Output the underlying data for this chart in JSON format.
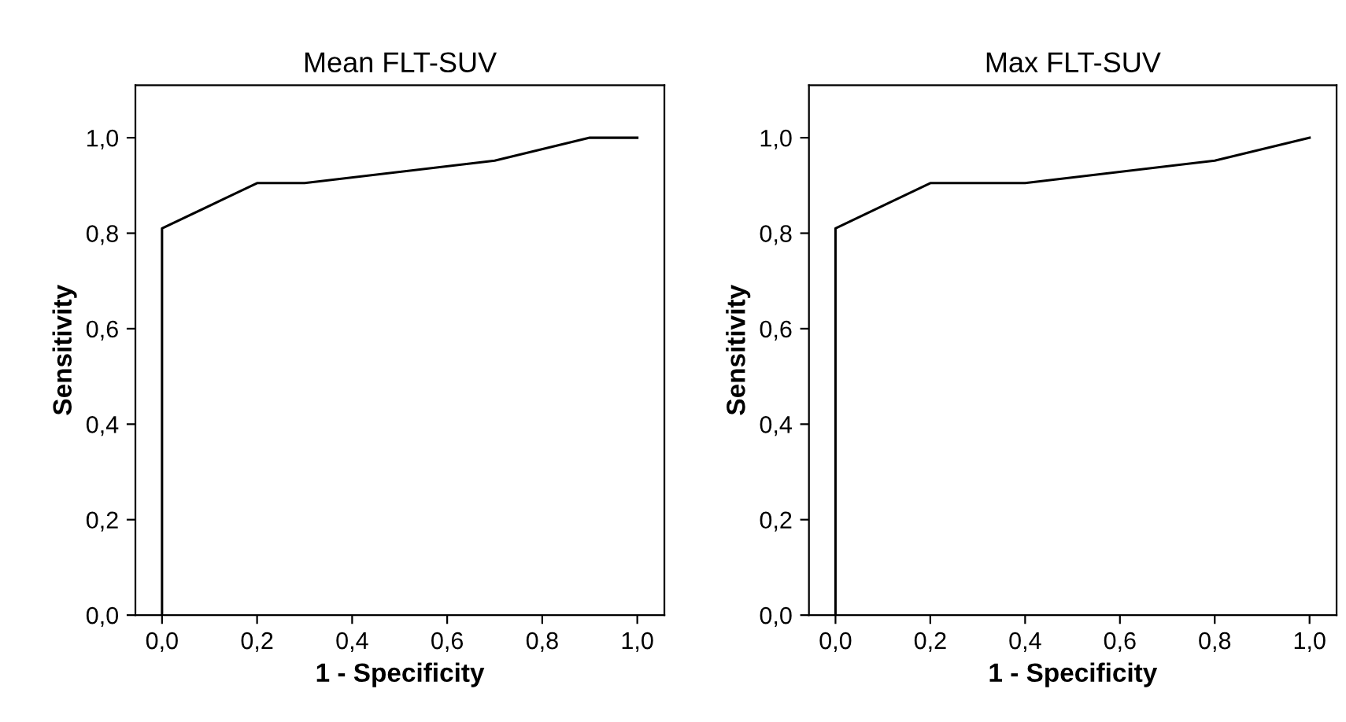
{
  "chart_data": [
    {
      "type": "line",
      "title": "Mean FLT-SUV",
      "xlabel": "1 - Specificity",
      "ylabel": "Sensitivity",
      "series": [
        {
          "color": "#000000",
          "x": [
            0,
            0,
            0.2,
            0.3,
            0.7,
            0.9,
            1.0
          ],
          "values": [
            0,
            0.81,
            0.905,
            0.905,
            0.952,
            1.0,
            1.0
          ]
        }
      ],
      "xlim": [
        -0.056,
        1.057
      ],
      "ylim": [
        0,
        1.11
      ],
      "xticks": [
        {
          "value": 0,
          "label": "0,0"
        },
        {
          "value": 0.2,
          "label": "0,2"
        },
        {
          "value": 0.4,
          "label": "0,4"
        },
        {
          "value": 0.6,
          "label": "0,6"
        },
        {
          "value": 0.8,
          "label": "0,8"
        },
        {
          "value": 1.0,
          "label": "1,0"
        }
      ],
      "yticks": [
        {
          "value": 0,
          "label": "0,0"
        },
        {
          "value": 0.2,
          "label": "0,2"
        },
        {
          "value": 0.4,
          "label": "0,4"
        },
        {
          "value": 0.6,
          "label": "0,6"
        },
        {
          "value": 0.8,
          "label": "0,8"
        },
        {
          "value": 1.0,
          "label": "1,0"
        }
      ],
      "grid": false,
      "legend": false,
      "marker": "none",
      "line_style": "solid"
    },
    {
      "type": "line",
      "title": "Max FLT-SUV",
      "xlabel": "1 - Specificity",
      "ylabel": "Sensitivity",
      "series": [
        {
          "color": "#000000",
          "x": [
            0,
            0,
            0.2,
            0.4,
            0.8,
            1.0
          ],
          "values": [
            0,
            0.81,
            0.905,
            0.905,
            0.952,
            1.0
          ]
        }
      ],
      "xlim": [
        -0.056,
        1.057
      ],
      "ylim": [
        0,
        1.11
      ],
      "xticks": [
        {
          "value": 0,
          "label": "0,0"
        },
        {
          "value": 0.2,
          "label": "0,2"
        },
        {
          "value": 0.4,
          "label": "0,4"
        },
        {
          "value": 0.6,
          "label": "0,6"
        },
        {
          "value": 0.8,
          "label": "0,8"
        },
        {
          "value": 1.0,
          "label": "1,0"
        }
      ],
      "yticks": [
        {
          "value": 0,
          "label": "0,0"
        },
        {
          "value": 0.2,
          "label": "0,2"
        },
        {
          "value": 0.4,
          "label": "0,4"
        },
        {
          "value": 0.6,
          "label": "0,6"
        },
        {
          "value": 0.8,
          "label": "0,8"
        },
        {
          "value": 1.0,
          "label": "1,0"
        }
      ],
      "grid": false,
      "legend": false,
      "marker": "none",
      "line_style": "solid"
    }
  ]
}
